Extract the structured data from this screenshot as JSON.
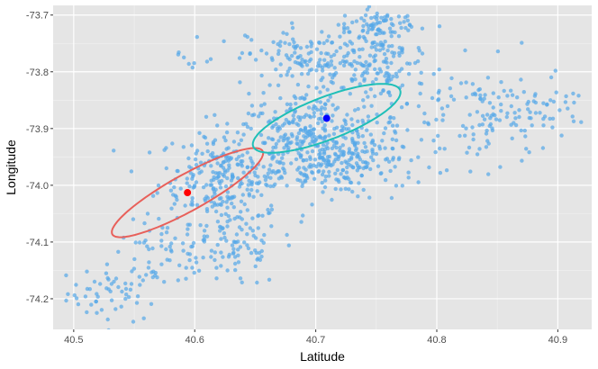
{
  "chart_data": {
    "type": "scatter",
    "xlabel": "Latitude",
    "ylabel": "Longitude",
    "xlim": [
      40.483,
      40.928
    ],
    "ylim": [
      -74.254,
      -73.683
    ],
    "x_ticks": [
      40.5,
      40.6,
      40.7,
      40.8,
      40.9
    ],
    "x_tick_labels": [
      "40.5",
      "40.6",
      "40.7",
      "40.8",
      "40.9"
    ],
    "y_ticks": [
      -73.7,
      -73.8,
      -73.9,
      -74.0,
      -74.1,
      -74.2
    ],
    "y_tick_labels": [
      "-73.7",
      "-73.8",
      "-73.9",
      "-74.0",
      "-74.1",
      "-74.2"
    ],
    "grid": true,
    "panel_background": "#e5e5e5",
    "point_color": "#56a8e8",
    "clusters": [
      {
        "x": 40.535,
        "y": -74.19,
        "sx": 0.02,
        "sy": 0.025,
        "n": 55
      },
      {
        "x": 40.575,
        "y": -74.125,
        "sx": 0.022,
        "sy": 0.03,
        "n": 60
      },
      {
        "x": 40.62,
        "y": -73.985,
        "sx": 0.025,
        "sy": 0.04,
        "n": 230
      },
      {
        "x": 40.635,
        "y": -74.105,
        "sx": 0.018,
        "sy": 0.04,
        "n": 90
      },
      {
        "x": 40.695,
        "y": -73.925,
        "sx": 0.03,
        "sy": 0.045,
        "n": 380
      },
      {
        "x": 40.7,
        "y": -73.78,
        "sx": 0.028,
        "sy": 0.03,
        "n": 160
      },
      {
        "x": 40.755,
        "y": -73.78,
        "sx": 0.018,
        "sy": 0.05,
        "n": 160
      },
      {
        "x": 40.755,
        "y": -73.72,
        "sx": 0.012,
        "sy": 0.012,
        "n": 40
      },
      {
        "x": 40.735,
        "y": -73.96,
        "sx": 0.025,
        "sy": 0.025,
        "n": 110
      },
      {
        "x": 40.84,
        "y": -73.88,
        "sx": 0.035,
        "sy": 0.045,
        "n": 130
      },
      {
        "x": 40.885,
        "y": -73.86,
        "sx": 0.015,
        "sy": 0.015,
        "n": 25
      },
      {
        "x": 40.603,
        "y": -73.77,
        "sx": 0.01,
        "sy": 0.02,
        "n": 10
      }
    ],
    "ellipses": [
      {
        "name": "",
        "color": "#e8605a",
        "center_x": 40.594,
        "center_y": -74.013,
        "rx": 0.071,
        "ry": 0.064,
        "tilt": -29
      },
      {
        "name": "",
        "color": "#1fbfb8",
        "center_x": 40.709,
        "center_y": -73.882,
        "rx": 0.065,
        "ry": 0.075,
        "tilt": -21
      }
    ],
    "centers": [
      {
        "x": 40.594,
        "y": -74.013,
        "color": "#ff0000"
      },
      {
        "x": 40.709,
        "y": -73.882,
        "color": "#0000ff"
      }
    ]
  }
}
